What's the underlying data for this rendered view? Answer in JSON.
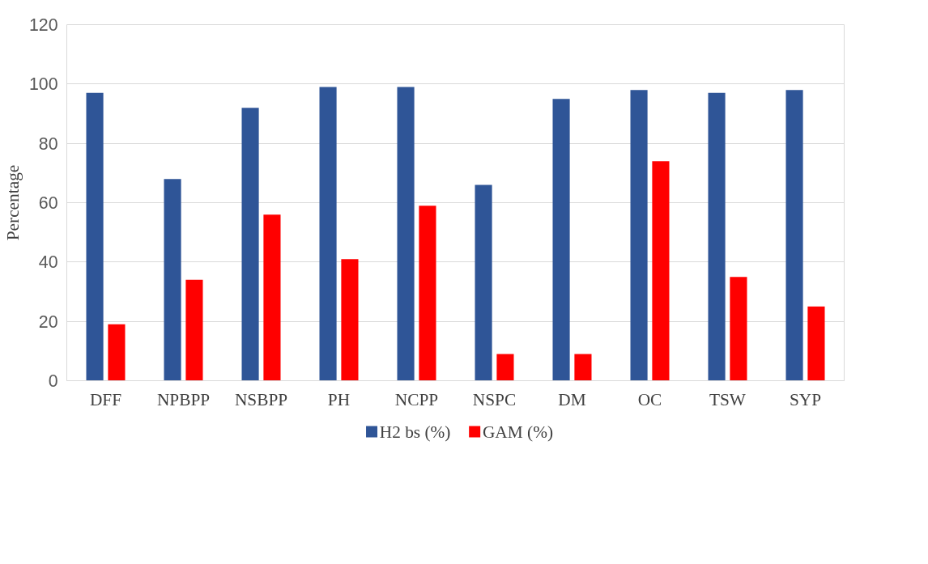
{
  "chart_data": {
    "type": "bar",
    "ylabel": "Percentage",
    "categories": [
      "DFF",
      "NPBPP",
      "NSBPP",
      "PH",
      "NCPP",
      "NSPC",
      "DM",
      "OC",
      "TSW",
      "SYP"
    ],
    "series": [
      {
        "name": "H2 bs (%)",
        "color": "#2f5597",
        "values": [
          97,
          68,
          92,
          99,
          99,
          66,
          95,
          98,
          97,
          98
        ]
      },
      {
        "name": "GAM (%)",
        "color": "#ff0000",
        "values": [
          19,
          34,
          56,
          41,
          59,
          9,
          9,
          74,
          35,
          25
        ]
      }
    ],
    "ylim": [
      0,
      120
    ],
    "yticks": [
      0,
      20,
      40,
      60,
      80,
      100,
      120
    ],
    "grid": "y",
    "legend": "bottom"
  }
}
